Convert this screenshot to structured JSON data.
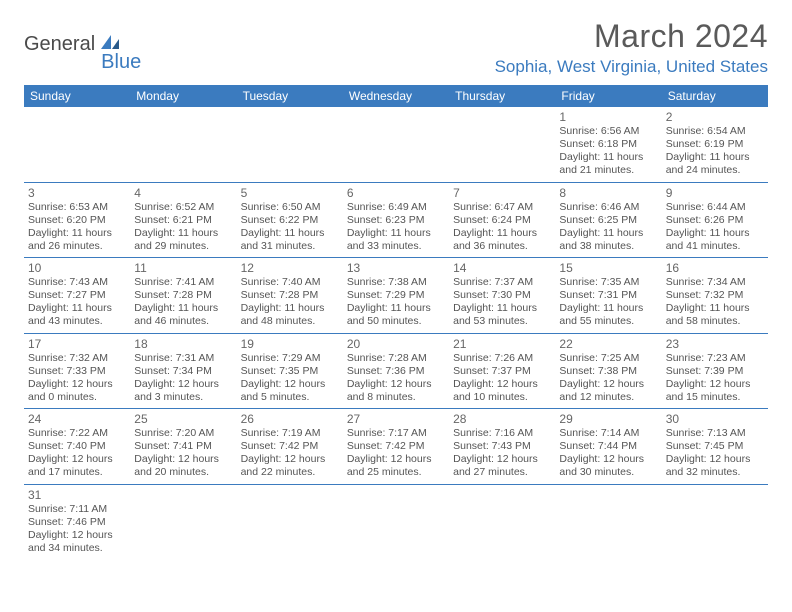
{
  "brand": {
    "general": "General",
    "blue": "Blue"
  },
  "title": "March 2024",
  "location": "Sophia, West Virginia, United States",
  "colors": {
    "accent": "#3b7bbf",
    "header_bg": "#3b7bbf",
    "header_fg": "#ffffff",
    "text": "#555555",
    "daynum": "#666666"
  },
  "weekdays": [
    "Sunday",
    "Monday",
    "Tuesday",
    "Wednesday",
    "Thursday",
    "Friday",
    "Saturday"
  ],
  "weeks": [
    [
      null,
      null,
      null,
      null,
      null,
      {
        "n": "1",
        "sr": "Sunrise: 6:56 AM",
        "ss": "Sunset: 6:18 PM",
        "dl": "Daylight: 11 hours and 21 minutes."
      },
      {
        "n": "2",
        "sr": "Sunrise: 6:54 AM",
        "ss": "Sunset: 6:19 PM",
        "dl": "Daylight: 11 hours and 24 minutes."
      }
    ],
    [
      {
        "n": "3",
        "sr": "Sunrise: 6:53 AM",
        "ss": "Sunset: 6:20 PM",
        "dl": "Daylight: 11 hours and 26 minutes."
      },
      {
        "n": "4",
        "sr": "Sunrise: 6:52 AM",
        "ss": "Sunset: 6:21 PM",
        "dl": "Daylight: 11 hours and 29 minutes."
      },
      {
        "n": "5",
        "sr": "Sunrise: 6:50 AM",
        "ss": "Sunset: 6:22 PM",
        "dl": "Daylight: 11 hours and 31 minutes."
      },
      {
        "n": "6",
        "sr": "Sunrise: 6:49 AM",
        "ss": "Sunset: 6:23 PM",
        "dl": "Daylight: 11 hours and 33 minutes."
      },
      {
        "n": "7",
        "sr": "Sunrise: 6:47 AM",
        "ss": "Sunset: 6:24 PM",
        "dl": "Daylight: 11 hours and 36 minutes."
      },
      {
        "n": "8",
        "sr": "Sunrise: 6:46 AM",
        "ss": "Sunset: 6:25 PM",
        "dl": "Daylight: 11 hours and 38 minutes."
      },
      {
        "n": "9",
        "sr": "Sunrise: 6:44 AM",
        "ss": "Sunset: 6:26 PM",
        "dl": "Daylight: 11 hours and 41 minutes."
      }
    ],
    [
      {
        "n": "10",
        "sr": "Sunrise: 7:43 AM",
        "ss": "Sunset: 7:27 PM",
        "dl": "Daylight: 11 hours and 43 minutes."
      },
      {
        "n": "11",
        "sr": "Sunrise: 7:41 AM",
        "ss": "Sunset: 7:28 PM",
        "dl": "Daylight: 11 hours and 46 minutes."
      },
      {
        "n": "12",
        "sr": "Sunrise: 7:40 AM",
        "ss": "Sunset: 7:28 PM",
        "dl": "Daylight: 11 hours and 48 minutes."
      },
      {
        "n": "13",
        "sr": "Sunrise: 7:38 AM",
        "ss": "Sunset: 7:29 PM",
        "dl": "Daylight: 11 hours and 50 minutes."
      },
      {
        "n": "14",
        "sr": "Sunrise: 7:37 AM",
        "ss": "Sunset: 7:30 PM",
        "dl": "Daylight: 11 hours and 53 minutes."
      },
      {
        "n": "15",
        "sr": "Sunrise: 7:35 AM",
        "ss": "Sunset: 7:31 PM",
        "dl": "Daylight: 11 hours and 55 minutes."
      },
      {
        "n": "16",
        "sr": "Sunrise: 7:34 AM",
        "ss": "Sunset: 7:32 PM",
        "dl": "Daylight: 11 hours and 58 minutes."
      }
    ],
    [
      {
        "n": "17",
        "sr": "Sunrise: 7:32 AM",
        "ss": "Sunset: 7:33 PM",
        "dl": "Daylight: 12 hours and 0 minutes."
      },
      {
        "n": "18",
        "sr": "Sunrise: 7:31 AM",
        "ss": "Sunset: 7:34 PM",
        "dl": "Daylight: 12 hours and 3 minutes."
      },
      {
        "n": "19",
        "sr": "Sunrise: 7:29 AM",
        "ss": "Sunset: 7:35 PM",
        "dl": "Daylight: 12 hours and 5 minutes."
      },
      {
        "n": "20",
        "sr": "Sunrise: 7:28 AM",
        "ss": "Sunset: 7:36 PM",
        "dl": "Daylight: 12 hours and 8 minutes."
      },
      {
        "n": "21",
        "sr": "Sunrise: 7:26 AM",
        "ss": "Sunset: 7:37 PM",
        "dl": "Daylight: 12 hours and 10 minutes."
      },
      {
        "n": "22",
        "sr": "Sunrise: 7:25 AM",
        "ss": "Sunset: 7:38 PM",
        "dl": "Daylight: 12 hours and 12 minutes."
      },
      {
        "n": "23",
        "sr": "Sunrise: 7:23 AM",
        "ss": "Sunset: 7:39 PM",
        "dl": "Daylight: 12 hours and 15 minutes."
      }
    ],
    [
      {
        "n": "24",
        "sr": "Sunrise: 7:22 AM",
        "ss": "Sunset: 7:40 PM",
        "dl": "Daylight: 12 hours and 17 minutes."
      },
      {
        "n": "25",
        "sr": "Sunrise: 7:20 AM",
        "ss": "Sunset: 7:41 PM",
        "dl": "Daylight: 12 hours and 20 minutes."
      },
      {
        "n": "26",
        "sr": "Sunrise: 7:19 AM",
        "ss": "Sunset: 7:42 PM",
        "dl": "Daylight: 12 hours and 22 minutes."
      },
      {
        "n": "27",
        "sr": "Sunrise: 7:17 AM",
        "ss": "Sunset: 7:42 PM",
        "dl": "Daylight: 12 hours and 25 minutes."
      },
      {
        "n": "28",
        "sr": "Sunrise: 7:16 AM",
        "ss": "Sunset: 7:43 PM",
        "dl": "Daylight: 12 hours and 27 minutes."
      },
      {
        "n": "29",
        "sr": "Sunrise: 7:14 AM",
        "ss": "Sunset: 7:44 PM",
        "dl": "Daylight: 12 hours and 30 minutes."
      },
      {
        "n": "30",
        "sr": "Sunrise: 7:13 AM",
        "ss": "Sunset: 7:45 PM",
        "dl": "Daylight: 12 hours and 32 minutes."
      }
    ],
    [
      {
        "n": "31",
        "sr": "Sunrise: 7:11 AM",
        "ss": "Sunset: 7:46 PM",
        "dl": "Daylight: 12 hours and 34 minutes."
      },
      null,
      null,
      null,
      null,
      null,
      null
    ]
  ]
}
